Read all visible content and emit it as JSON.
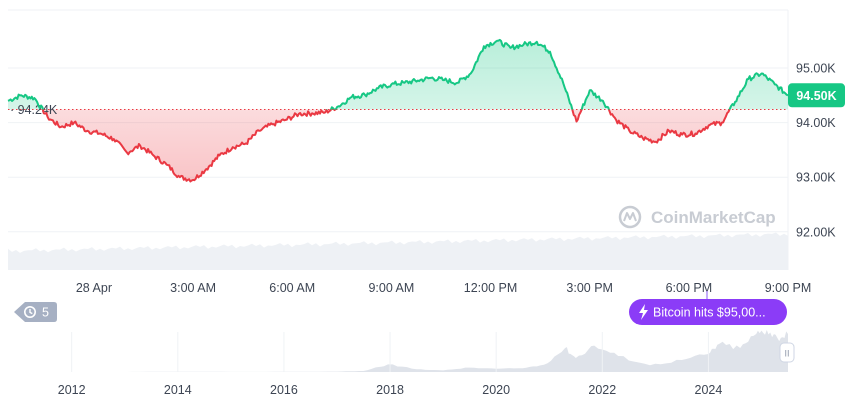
{
  "chart_data": [
    {
      "type": "area",
      "x_ticks": [
        "28 Apr",
        "3:00 AM",
        "6:00 AM",
        "9:00 AM",
        "12:00 PM",
        "3:00 PM",
        "6:00 PM",
        "9:00 PM"
      ],
      "y_ticks": [
        "95.00K",
        "94.00K",
        "93.00K",
        "92.00K"
      ],
      "y_tick_values": [
        95000,
        94000,
        93000,
        92000
      ],
      "ylim": [
        91300,
        96100
      ],
      "xlim": [
        -2.6,
        21.0
      ],
      "reference": {
        "value": 94240,
        "label": "94.24K"
      },
      "current": {
        "value": 94500,
        "label": "94.50K"
      },
      "colors": {
        "up": "#16c784",
        "down": "#ea3943",
        "reference": "#ea3943",
        "current_tag": "#16c784"
      },
      "series": [
        {
          "x": [
            -2.6,
            -2.2,
            -1.8,
            -1.4,
            -1.0,
            -0.6,
            -0.2,
            0.2,
            0.6,
            1.0,
            1.4,
            1.8,
            2.2,
            2.6,
            3.0,
            3.4,
            3.8,
            4.2,
            4.6,
            5.0,
            5.4,
            5.8,
            6.2,
            6.6,
            7.0,
            7.4,
            7.8,
            8.2,
            8.6,
            9.0,
            9.4,
            9.8,
            10.2,
            10.6,
            11.0,
            11.4,
            11.8,
            12.2,
            12.6,
            13.0,
            13.4,
            13.8,
            14.2,
            14.6,
            15.0,
            15.4,
            15.8,
            16.2,
            16.6,
            17.0,
            17.4,
            17.8,
            18.2,
            18.6,
            19.0,
            19.4,
            19.8,
            20.2,
            20.6,
            21.0
          ],
          "values": [
            94400,
            94500,
            94450,
            94100,
            93920,
            94000,
            93850,
            93800,
            93700,
            93450,
            93580,
            93400,
            93230,
            93000,
            92950,
            93150,
            93400,
            93550,
            93620,
            93850,
            93970,
            94050,
            94160,
            94170,
            94190,
            94300,
            94470,
            94510,
            94630,
            94700,
            94730,
            94770,
            94820,
            94780,
            94730,
            94900,
            95400,
            95500,
            95370,
            95430,
            95480,
            95300,
            94720,
            94020,
            94590,
            94400,
            94050,
            93850,
            93720,
            93650,
            93850,
            93780,
            93800,
            93950,
            94000,
            94380,
            94800,
            94900,
            94700,
            94500
          ]
        }
      ]
    },
    {
      "type": "area",
      "x_ticks": [
        "2012",
        "2014",
        "2016",
        "2018",
        "2020",
        "2022",
        "2024"
      ],
      "xlim": [
        2010.8,
        2025.5
      ],
      "ylim": [
        0,
        100000
      ],
      "series": [
        {
          "x": [
            2010.8,
            2012.0,
            2013.0,
            2013.9,
            2015.0,
            2016.0,
            2017.0,
            2017.5,
            2017.96,
            2018.5,
            2019.0,
            2019.5,
            2020.0,
            2020.5,
            2020.9,
            2021.3,
            2021.5,
            2021.85,
            2022.3,
            2022.9,
            2023.5,
            2024.0,
            2024.2,
            2024.6,
            2024.9,
            2025.1,
            2025.3,
            2025.5
          ],
          "values": [
            100,
            100,
            100,
            800,
            300,
            400,
            1000,
            2500,
            19000,
            7000,
            4000,
            11000,
            8000,
            9500,
            18000,
            60000,
            35000,
            66000,
            40000,
            17000,
            30000,
            45000,
            70000,
            60000,
            95000,
            105000,
            85000,
            95000
          ]
        }
      ]
    }
  ],
  "chart_text": {
    "brand": "CoinMarketCap",
    "history_count": "5",
    "event_label": "Bitcoin hits $95,00...",
    "handle": "II"
  }
}
